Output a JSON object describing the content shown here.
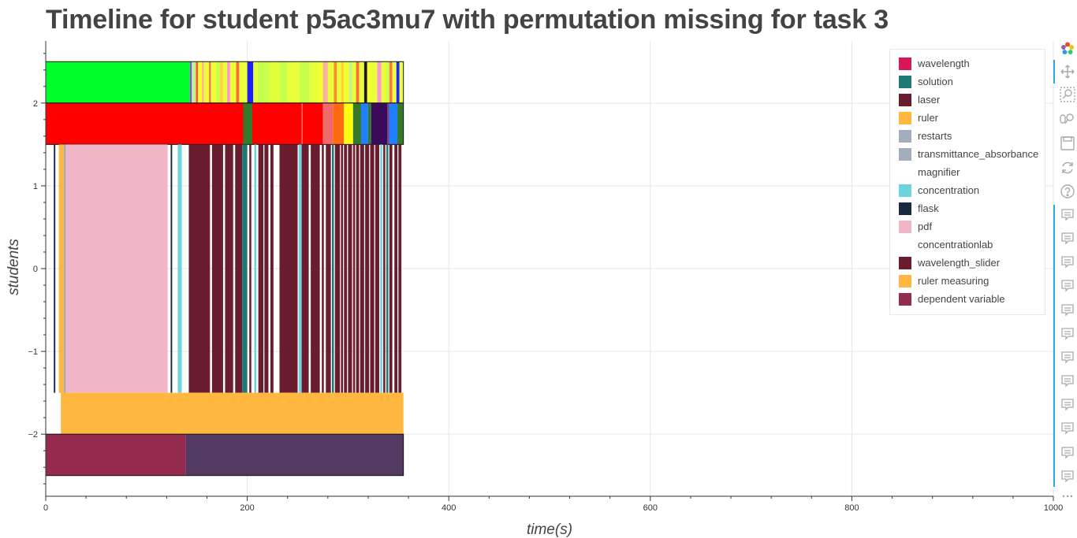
{
  "title": "Timeline for student p5ac3mu7 with permutation missing for task 3",
  "chart_data": {
    "type": "timeline",
    "title": "Timeline for student p5ac3mu7 with permutation missing for task 3",
    "xlabel": "time(s)",
    "ylabel": "students",
    "xlim": [
      0,
      1000
    ],
    "ylim": [
      -2.75,
      2.75
    ],
    "x_ticks": [
      0,
      200,
      400,
      600,
      800,
      1000
    ],
    "x_tick_labels": [
      "0",
      "200",
      "400",
      "600",
      "800",
      "1000"
    ],
    "y_ticks": [
      2,
      1,
      0,
      -1,
      -2
    ],
    "y_tick_labels": [
      "2",
      "1",
      "0",
      "−1",
      "−2"
    ],
    "grid": true,
    "legend_position": "top-right",
    "legend": [
      {
        "label": "wavelength",
        "color": "#d6175a"
      },
      {
        "label": "solution",
        "color": "#1f7a75"
      },
      {
        "label": "laser",
        "color": "#6b1d30"
      },
      {
        "label": "ruler",
        "color": "#ffb73f"
      },
      {
        "label": "restarts",
        "color": "#a3adbd"
      },
      {
        "label": "transmittance_absorbance",
        "color": "#a3adbd"
      },
      {
        "label": "magnifier",
        "color": "#ffffff"
      },
      {
        "label": "concentration",
        "color": "#6fd3de"
      },
      {
        "label": "flask",
        "color": "#172a40"
      },
      {
        "label": "pdf",
        "color": "#f0b6c8"
      },
      {
        "label": "concentrationlab",
        "color": "#ffffff"
      },
      {
        "label": "wavelength_slider",
        "color": "#6b1d30"
      },
      {
        "label": "ruler measuring",
        "color": "#ffb73f"
      },
      {
        "label": "dependent variable",
        "color": "#952a4f"
      }
    ],
    "rows": [
      {
        "y0": 2.0,
        "y1": 2.5,
        "outlined": true,
        "segments": [
          [
            0,
            143,
            "#00ff2a"
          ],
          [
            143,
            145,
            "#7a5ad8"
          ],
          [
            145,
            149,
            "#bff58a"
          ],
          [
            149,
            151,
            "#ff5050"
          ],
          [
            151,
            155,
            "#f4ff2e"
          ],
          [
            155,
            157,
            "#ffb0a0"
          ],
          [
            157,
            162,
            "#e8ff3a"
          ],
          [
            162,
            164,
            "#ff7a3a"
          ],
          [
            164,
            170,
            "#e7ff3a"
          ],
          [
            170,
            173,
            "#c8ff4a"
          ],
          [
            173,
            176,
            "#ffd33a"
          ],
          [
            176,
            180,
            "#e7ff3a"
          ],
          [
            180,
            183,
            "#ff9ad0"
          ],
          [
            183,
            189,
            "#ecff35"
          ],
          [
            189,
            192,
            "#ff6a3a"
          ],
          [
            192,
            197,
            "#e7ff3a"
          ],
          [
            197,
            200,
            "#f2ff2a"
          ],
          [
            200,
            206,
            "#2020ff"
          ],
          [
            206,
            210,
            "#e7ff3a"
          ],
          [
            210,
            222,
            "#c8ff4a"
          ],
          [
            222,
            232,
            "#e3ff3a"
          ],
          [
            232,
            240,
            "#c8ff4a"
          ],
          [
            240,
            252,
            "#e8ff3a"
          ],
          [
            252,
            262,
            "#c8ff4a"
          ],
          [
            262,
            270,
            "#e7ff3a"
          ],
          [
            270,
            275,
            "#f4ff2e"
          ],
          [
            275,
            280,
            "#ffb0a0"
          ],
          [
            280,
            286,
            "#e7ff3a"
          ],
          [
            286,
            289,
            "#ff8a2a"
          ],
          [
            289,
            293,
            "#e8ff3a"
          ],
          [
            293,
            296,
            "#ffd33a"
          ],
          [
            296,
            301,
            "#f4ff2e"
          ],
          [
            301,
            304,
            "#bff58a"
          ],
          [
            304,
            308,
            "#e7ff3a"
          ],
          [
            308,
            311,
            "#ff6a3a"
          ],
          [
            311,
            316,
            "#e7ff3a"
          ],
          [
            316,
            319,
            "#1a1a1a"
          ],
          [
            319,
            324,
            "#f4ff2e"
          ],
          [
            324,
            329,
            "#e7ff3a"
          ],
          [
            329,
            333,
            "#ff9ad0"
          ],
          [
            333,
            338,
            "#e7ff3a"
          ],
          [
            338,
            341,
            "#c8ff4a"
          ],
          [
            341,
            344,
            "#ff7a3a"
          ],
          [
            344,
            348,
            "#e7ff3a"
          ],
          [
            348,
            351,
            "#2020ff"
          ],
          [
            351,
            355,
            "#e8ff3a"
          ]
        ]
      },
      {
        "y0": 1.5,
        "y1": 2.0,
        "outlined": true,
        "segments": [
          [
            0,
            196,
            "#ff0000"
          ],
          [
            196,
            205,
            "#357a2a"
          ],
          [
            205,
            254,
            "#ff0000"
          ],
          [
            254,
            255,
            "#ff6a6a"
          ],
          [
            255,
            275,
            "#ff0000"
          ],
          [
            275,
            285,
            "#f06a6a"
          ],
          [
            285,
            296,
            "#ff6a10"
          ],
          [
            296,
            305,
            "#ffff10"
          ],
          [
            305,
            313,
            "#357a2a"
          ],
          [
            313,
            320,
            "#2080ff"
          ],
          [
            320,
            323,
            "#357a2a"
          ],
          [
            323,
            339,
            "#3a0a5a"
          ],
          [
            339,
            341,
            "#6a3a8a"
          ],
          [
            341,
            349,
            "#2080ff"
          ],
          [
            349,
            355,
            "#357a2a"
          ]
        ]
      },
      {
        "y0": -1.5,
        "y1": 1.5,
        "outlined": false,
        "segments": [
          [
            8,
            9.5,
            "#172a40"
          ],
          [
            13,
            18,
            "#ffb73f"
          ],
          [
            18,
            20,
            "#a3adbd"
          ],
          [
            20,
            121,
            "#f0b6c8"
          ],
          [
            124,
            125.5,
            "#172a40"
          ],
          [
            131,
            135,
            "#6fd3de"
          ],
          [
            142,
            163,
            "#6b1d30"
          ],
          [
            165,
            176,
            "#6b1d30"
          ],
          [
            178,
            186,
            "#6b1d30"
          ],
          [
            188,
            195,
            "#6b1d30"
          ],
          [
            195,
            200,
            "#1f7a75"
          ],
          [
            202,
            204,
            "#6b1d30"
          ],
          [
            207,
            209,
            "#6fd3de"
          ],
          [
            211,
            216,
            "#6b1d30"
          ],
          [
            217,
            221,
            "#6b1d30"
          ],
          [
            223,
            226,
            "#6b1d30"
          ],
          [
            232,
            250,
            "#6b1d30"
          ],
          [
            251,
            254,
            "#6fd3de"
          ],
          [
            254,
            261,
            "#6b1d30"
          ],
          [
            263,
            272,
            "#6b1d30"
          ],
          [
            274,
            276,
            "#6b1d30"
          ],
          [
            278,
            283,
            "#6b1d30"
          ],
          [
            284,
            286,
            "#1f7a75"
          ],
          [
            287,
            292,
            "#6b1d30"
          ],
          [
            293,
            295,
            "#6b1d30"
          ],
          [
            296,
            299,
            "#6b1d30"
          ],
          [
            300,
            304,
            "#6b1d30"
          ],
          [
            305,
            307,
            "#6b1d30"
          ],
          [
            308,
            311,
            "#6b1d30"
          ],
          [
            312,
            316,
            "#6b1d30"
          ],
          [
            317,
            321,
            "#6b1d30"
          ],
          [
            322,
            326,
            "#6b1d30"
          ],
          [
            327,
            331,
            "#6b1d30"
          ],
          [
            332,
            334,
            "#6fd3de"
          ],
          [
            335,
            337,
            "#6b1d30"
          ],
          [
            338,
            340,
            "#1f7a75"
          ],
          [
            341,
            344,
            "#6b1d30"
          ],
          [
            346,
            349,
            "#6b1d30"
          ],
          [
            350,
            353,
            "#6b1d30"
          ]
        ]
      },
      {
        "y0": -2.0,
        "y1": -1.5,
        "outlined": false,
        "segments": [
          [
            15,
            355,
            "#ffb73f"
          ]
        ]
      },
      {
        "y0": -2.5,
        "y1": -2.0,
        "outlined": true,
        "segments": [
          [
            0,
            139,
            "#952a4f"
          ],
          [
            139,
            355,
            "#533a62"
          ]
        ]
      }
    ]
  },
  "toolbar": {
    "items": [
      {
        "name": "bokeh-logo-icon"
      },
      {
        "name": "pan-icon"
      },
      {
        "name": "box-zoom-icon"
      },
      {
        "name": "wheel-zoom-icon"
      },
      {
        "name": "save-icon"
      },
      {
        "name": "reset-icon"
      },
      {
        "name": "help-icon"
      },
      {
        "name": "hover-icon"
      },
      {
        "name": "hover-icon"
      },
      {
        "name": "hover-icon"
      },
      {
        "name": "hover-icon"
      },
      {
        "name": "hover-icon"
      },
      {
        "name": "hover-icon"
      },
      {
        "name": "hover-icon"
      },
      {
        "name": "hover-icon"
      },
      {
        "name": "hover-icon"
      },
      {
        "name": "hover-icon"
      },
      {
        "name": "hover-icon"
      },
      {
        "name": "hover-icon"
      },
      {
        "name": "more-icon"
      }
    ]
  }
}
